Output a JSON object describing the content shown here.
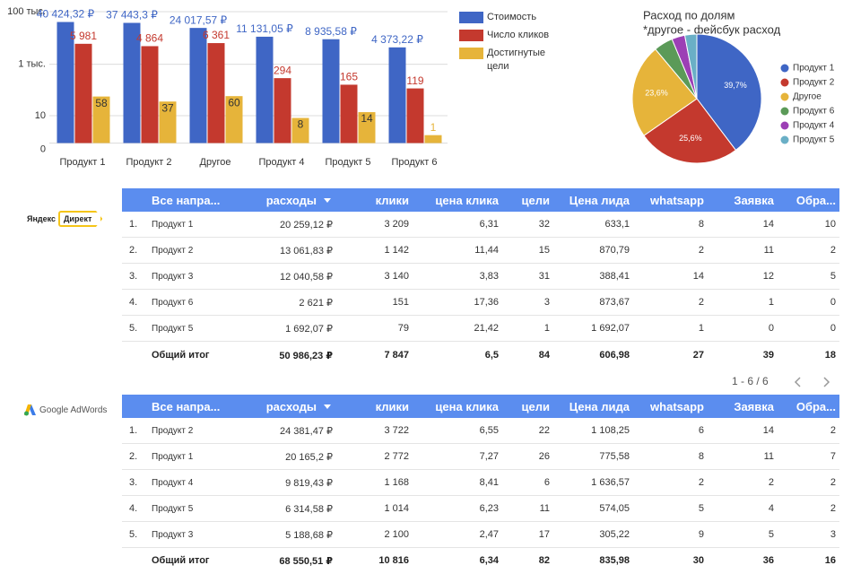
{
  "chart_data": [
    {
      "type": "bar",
      "log_scale": true,
      "categories": [
        "Продукт 1",
        "Продукт 2",
        "Другое",
        "Продукт 4",
        "Продукт 5",
        "Продукт 6"
      ],
      "series": [
        {
          "name": "Стоимость",
          "color": "#3f66c5",
          "values": [
            40424.32,
            37443.3,
            24017.57,
            11131.05,
            8935.58,
            4373.22
          ],
          "value_labels": [
            "40 424,32 ₽",
            "37 443,3 ₽",
            "24 017,57 ₽",
            "11 131,05 ₽",
            "8 935,58 ₽",
            "4 373,22 ₽"
          ]
        },
        {
          "name": "Число кликов",
          "color": "#c4392e",
          "values": [
            5981,
            4864,
            6361,
            294,
            165,
            119
          ],
          "value_labels": [
            "5 981",
            "4 864",
            "6 361",
            "294",
            "165",
            "119"
          ]
        },
        {
          "name": "Достигнутые цели",
          "color": "#e6b43a",
          "values": [
            58,
            37,
            60,
            8,
            14,
            1
          ]
        }
      ],
      "ylim": [
        0,
        100000
      ],
      "yticks": [
        {
          "value": 100000,
          "label": "100 тыс."
        },
        {
          "value": 1000,
          "label": "1 тыс."
        },
        10,
        0
      ],
      "grid": true,
      "legend": "right"
    },
    {
      "type": "pie",
      "title": "Расход по долям",
      "subtitle": "*другое - фейсбук расход",
      "categories": [
        "Продукт 1",
        "Продукт 2",
        "Другое",
        "Продукт 6",
        "Продукт 4",
        "Продукт 5"
      ],
      "values": [
        39.7,
        25.6,
        23.6,
        4.8,
        3.3,
        3.0
      ],
      "value_labels": [
        "39,7%",
        "25,6%",
        "23,6%",
        null,
        null,
        null
      ],
      "colors": [
        "#3f66c5",
        "#c4392e",
        "#e6b43a",
        "#5b9a58",
        "#9c3fb5",
        "#6aafc6"
      ],
      "legend": "right"
    }
  ],
  "tables": [
    {
      "logo": [
        "Яндекс",
        "Директ"
      ],
      "headers": [
        "Все напра...",
        "расходы",
        "клики",
        "цена клика",
        "цели",
        "Цена лида",
        "whatsapp",
        "Заявка",
        "Обра..."
      ],
      "rows": [
        [
          "1.",
          "Продукт 1",
          "20 259,12 ₽",
          "3 209",
          "6,31",
          "32",
          "633,1",
          "8",
          "14",
          "10"
        ],
        [
          "2.",
          "Продукт 2",
          "13 061,83 ₽",
          "1 142",
          "11,44",
          "15",
          "870,79",
          "2",
          "11",
          "2"
        ],
        [
          "3.",
          "Продукт 3",
          "12 040,58 ₽",
          "3 140",
          "3,83",
          "31",
          "388,41",
          "14",
          "12",
          "5"
        ],
        [
          "4.",
          "Продукт 6",
          "2 621 ₽",
          "151",
          "17,36",
          "3",
          "873,67",
          "2",
          "1",
          "0"
        ],
        [
          "5.",
          "Продукт 5",
          "1 692,07 ₽",
          "79",
          "21,42",
          "1",
          "1 692,07",
          "1",
          "0",
          "0"
        ]
      ],
      "total": [
        "Общий итог",
        "50 986,23 ₽",
        "7 847",
        "6,5",
        "84",
        "606,98",
        "27",
        "39",
        "18"
      ],
      "pagination": "1 - 6 / 6"
    },
    {
      "logo": [
        "Google AdWords"
      ],
      "headers": [
        "Все напра...",
        "расходы",
        "клики",
        "цена клика",
        "цели",
        "Цена лида",
        "whatsapp",
        "Заявка",
        "Обра..."
      ],
      "rows": [
        [
          "1.",
          "Продукт 2",
          "24 381,47 ₽",
          "3 722",
          "6,55",
          "22",
          "1 108,25",
          "6",
          "14",
          "2"
        ],
        [
          "2.",
          "Продукт 1",
          "20 165,2 ₽",
          "2 772",
          "7,27",
          "26",
          "775,58",
          "8",
          "11",
          "7"
        ],
        [
          "3.",
          "Продукт 4",
          "9 819,43 ₽",
          "1 168",
          "8,41",
          "6",
          "1 636,57",
          "2",
          "2",
          "2"
        ],
        [
          "4.",
          "Продукт 5",
          "6 314,58 ₽",
          "1 014",
          "6,23",
          "11",
          "574,05",
          "5",
          "4",
          "2"
        ],
        [
          "5.",
          "Продукт 3",
          "5 188,68 ₽",
          "2 100",
          "2,47",
          "17",
          "305,22",
          "9",
          "5",
          "3"
        ]
      ],
      "total": [
        "Общий итог",
        "68 550,51 ₽",
        "10 816",
        "6,34",
        "82",
        "835,98",
        "30",
        "36",
        "16"
      ]
    }
  ]
}
